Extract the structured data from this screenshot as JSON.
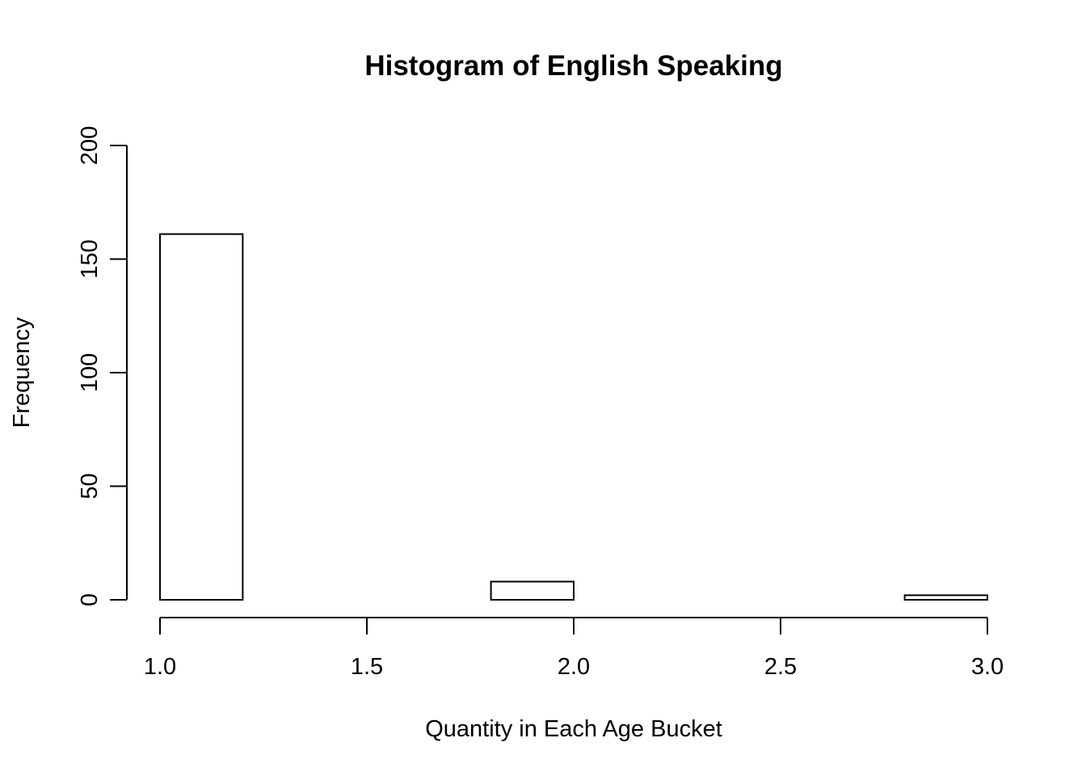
{
  "chart_data": {
    "type": "bar",
    "subtype": "histogram",
    "title": "Histogram of English Speaking",
    "xlabel": "Quantity in Each Age Bucket",
    "ylabel": "Frequency",
    "xlim": [
      1.0,
      3.0
    ],
    "ylim": [
      0,
      200
    ],
    "x_ticks": [
      1.0,
      1.5,
      2.0,
      2.5,
      3.0
    ],
    "x_tick_labels": [
      "1.0",
      "1.5",
      "2.0",
      "2.5",
      "3.0"
    ],
    "y_ticks": [
      0,
      50,
      100,
      150,
      200
    ],
    "y_tick_labels": [
      "0",
      "50",
      "100",
      "150",
      "200"
    ],
    "bins": [
      {
        "x0": 1.0,
        "x1": 1.2,
        "count": 161
      },
      {
        "x0": 1.2,
        "x1": 1.4,
        "count": 0
      },
      {
        "x0": 1.4,
        "x1": 1.6,
        "count": 0
      },
      {
        "x0": 1.6,
        "x1": 1.8,
        "count": 0
      },
      {
        "x0": 1.8,
        "x1": 2.0,
        "count": 8
      },
      {
        "x0": 2.0,
        "x1": 2.2,
        "count": 0
      },
      {
        "x0": 2.2,
        "x1": 2.4,
        "count": 0
      },
      {
        "x0": 2.4,
        "x1": 2.6,
        "count": 0
      },
      {
        "x0": 2.6,
        "x1": 2.8,
        "count": 0
      },
      {
        "x0": 2.8,
        "x1": 3.0,
        "count": 2
      }
    ],
    "fill_color": "#ffffff",
    "stroke_color": "#000000",
    "grid": false,
    "legend": "none"
  }
}
